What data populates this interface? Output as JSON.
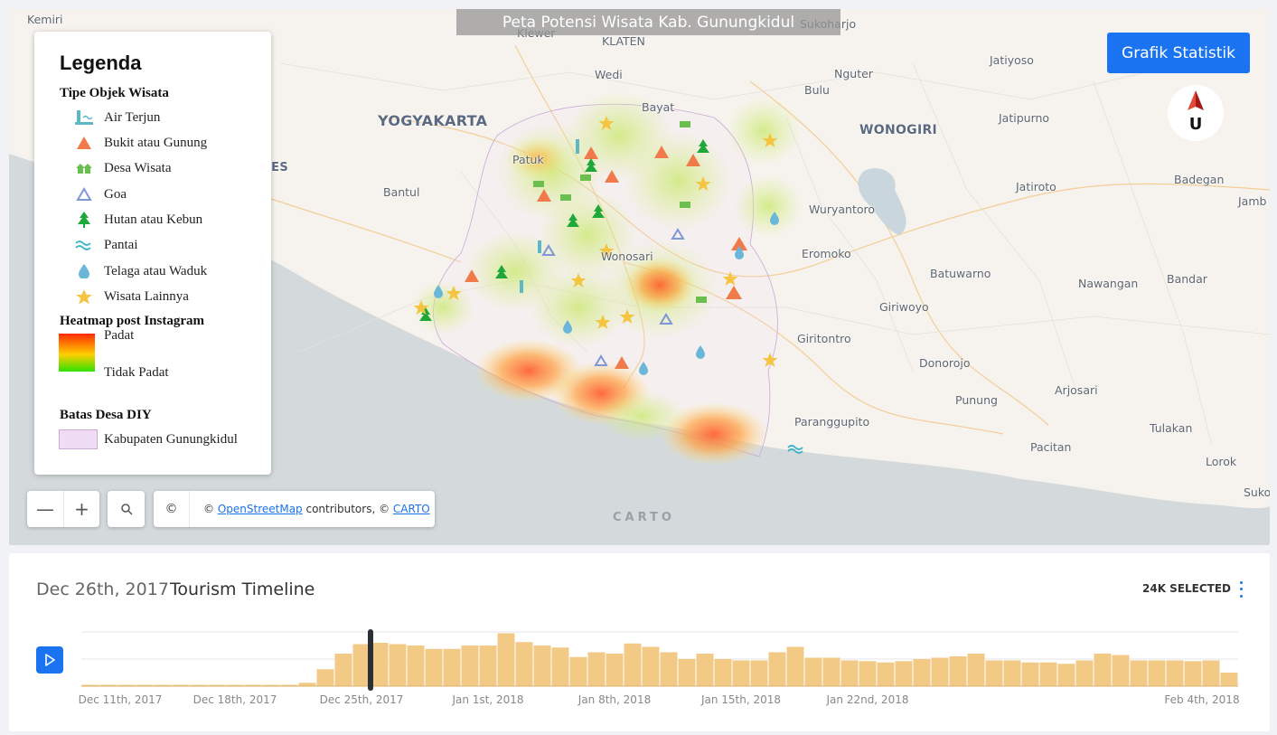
{
  "map": {
    "title": "Peta Potensi Wisata Kab. Gunungkidul",
    "stats_button": "Grafik Statistik",
    "north_label": "U",
    "places": {
      "kemiri": "Kemiri",
      "klewer": "Klewer",
      "klaten": "KLATEN",
      "sukoharjo": "Sukoharjo",
      "wedi": "Wedi",
      "nguter": "Nguter",
      "jatiyoso": "Jatiyoso",
      "bulu": "Bulu",
      "bayat": "Bayat",
      "yogyakarta": "YOGYAKARTA",
      "jatipurno": "Jatipurno",
      "wonogiri": "WONOGIRI",
      "patuk": "Patuk",
      "tes": "TES",
      "bantul": "Bantul",
      "jatiroto": "Jatiroto",
      "badegan": "Badegan",
      "jamb": "Jamb",
      "wuryantoro": "Wuryantoro",
      "wonosari": "Wonosari",
      "eromoko": "Eromoko",
      "batuwarno": "Batuwarno",
      "nawangan": "Nawangan",
      "bandar": "Bandar",
      "giriwoyo": "Giriwoyo",
      "giritontro": "Giritontro",
      "donorojo": "Donorojo",
      "punung": "Punung",
      "arjosari": "Arjosari",
      "paranggupito": "Paranggupito",
      "tulakan": "Tulakan",
      "pacitan": "Pacitan",
      "lorok": "Lorok",
      "suko": "Suko"
    },
    "attribution": {
      "prefix": "© ",
      "osm_link": "OpenStreetMap",
      "middle": " contributors, © ",
      "carto_link": "CARTO"
    },
    "copyright_symbol": "©",
    "carto_logo": "CARTO",
    "zoom_out": "—",
    "zoom_in": "+"
  },
  "legend": {
    "title": "Legenda",
    "types_heading": "Tipe Objek Wisata",
    "types": [
      {
        "label": "Air Terjun",
        "icon": "waterfall-icon",
        "color": "#5bb8c4"
      },
      {
        "label": "Bukit atau Gunung",
        "icon": "mountain-icon",
        "color": "#f07a4a"
      },
      {
        "label": "Desa Wisata",
        "icon": "village-icon",
        "color": "#6bbf4e"
      },
      {
        "label": "Goa",
        "icon": "cave-icon",
        "color": "#7f97d6"
      },
      {
        "label": "Hutan atau Kebun",
        "icon": "tree-icon",
        "color": "#1fa83a"
      },
      {
        "label": "Pantai",
        "icon": "beach-icon",
        "color": "#3fb3c8"
      },
      {
        "label": "Telaga atau Waduk",
        "icon": "lake-icon",
        "color": "#6ab7d9"
      },
      {
        "label": "Wisata Lainnya",
        "icon": "star-icon",
        "color": "#f5c542"
      }
    ],
    "heatmap_heading": "Heatmap post Instagram",
    "heatmap_high": "Padat",
    "heatmap_low": "Tidak Padat",
    "boundary_heading": "Batas Desa DIY",
    "boundary_label": "Kabupaten Gunungkidul"
  },
  "timeline": {
    "current_date": "Dec 26th, 2017",
    "title": "Tourism Timeline",
    "selected": "24K SELECTED",
    "accent": "#1a73f0",
    "bar_color": "#f2ca86"
  },
  "chart_data": {
    "type": "bar",
    "x_start": "Dec 10th, 2017",
    "x_step": "1 day",
    "tick_labels": [
      "Dec 11th, 2017",
      "Dec 18th, 2017",
      "Dec 25th, 2017",
      "Jan 1st, 2018",
      "Jan 8th, 2018",
      "Jan 15th, 2018",
      "Jan 22nd, 2018",
      "Feb 4th, 2018"
    ],
    "values": [
      2,
      2,
      2,
      2,
      2,
      2,
      2,
      2,
      2,
      2,
      2,
      2,
      5,
      25,
      48,
      62,
      64,
      62,
      60,
      55,
      55,
      60,
      60,
      78,
      65,
      60,
      57,
      43,
      50,
      48,
      63,
      58,
      50,
      40,
      48,
      40,
      38,
      38,
      50,
      58,
      42,
      42,
      38,
      37,
      35,
      37,
      40,
      42,
      44,
      48,
      38,
      38,
      35,
      35,
      33,
      38,
      48,
      46,
      38,
      38,
      38,
      37,
      38,
      20
    ],
    "ylim": [
      0,
      80
    ],
    "highlighted_date": "Dec 26th, 2017"
  }
}
